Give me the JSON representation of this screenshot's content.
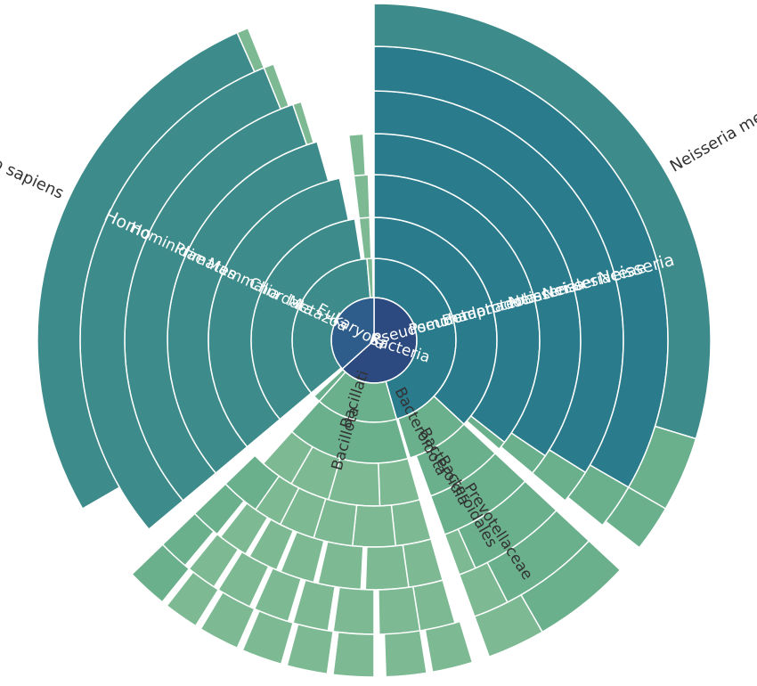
{
  "chart_data": {
    "type": "sunburst",
    "unit": "degrees",
    "colors": {
      "root_bacteria": "#2c4a80",
      "root_eukaryota": "#2e5d8c",
      "deep_teal": "#2a7b8c",
      "teal": "#3d8b8a",
      "green": "#6ab08c",
      "light_green": "#7dba93",
      "text_light": "#ffffff",
      "text_dark": "#333333"
    },
    "labels": {
      "bacteria": "Bacteria",
      "eukaryota": "Eukaryota",
      "pseudomonadati": "Pseudomonadati",
      "pseudomonadota": "Pseudomonadota",
      "betaproteobacteria": "Betaproteobacteria",
      "neisseriales": "Neisseriales",
      "neisseriaceae": "Neisseriaceae",
      "neisseria": "Neisseria",
      "neisseria_meningitidis": "Neisseria meningitidis",
      "bacteroidota": "Bacteroidota",
      "bacteroidia": "Bacteroidia",
      "bacteroidales": "Bacteroidales",
      "prevotellaceae": "Prevotellaceae",
      "bacillati": "Bacillati",
      "bacillota": "Bacillota",
      "metazoa": "Metazoa",
      "chordata": "Chordata",
      "mammalia": "Mammalia",
      "primates": "Primates",
      "hominidae": "Hominidae",
      "homo": "Homo",
      "homo_sapiens": "Homo sapiens"
    },
    "segments": [
      {
        "depth": 0,
        "start": 0,
        "end": 228,
        "color": "root_bacteria",
        "label": "bacteria",
        "label_angle": 108,
        "label_dark": false
      },
      {
        "depth": 0,
        "start": 228,
        "end": 360,
        "color": "root_eukaryota",
        "label": "eukaryota",
        "label_angle": 300,
        "label_dark": false
      },
      {
        "depth": 1,
        "start": 0,
        "end": 164,
        "color": "deep_teal",
        "label": "pseudomonadati",
        "label_angle": 75,
        "label_dark": false
      },
      {
        "depth": 1,
        "start": 164,
        "end": 222,
        "color": "green",
        "label": "bacillati",
        "label_angle": 198,
        "label_dark": true
      },
      {
        "depth": 1,
        "start": 222,
        "end": 227,
        "color": "green"
      },
      {
        "depth": 1,
        "start": 230,
        "end": 355,
        "color": "teal",
        "label": "metazoa",
        "label_angle": 295,
        "label_dark": false
      },
      {
        "depth": 1,
        "start": 355,
        "end": 359,
        "color": "light_green"
      },
      {
        "depth": 2,
        "start": 0,
        "end": 133,
        "color": "deep_teal",
        "label": "pseudomonadota",
        "label_angle": 75,
        "label_dark": false
      },
      {
        "depth": 2,
        "start": 133,
        "end": 163,
        "color": "green",
        "label": "bacteroidota",
        "label_angle": 153,
        "label_dark": true
      },
      {
        "depth": 2,
        "start": 164,
        "end": 222,
        "color": "green",
        "label": "bacillota",
        "label_angle": 196,
        "label_dark": true
      },
      {
        "depth": 2,
        "start": 230,
        "end": 351,
        "color": "teal",
        "label": "chordata",
        "label_angle": 295,
        "label_dark": false
      },
      {
        "depth": 2,
        "start": 353,
        "end": 358,
        "color": "light_green"
      },
      {
        "depth": 3,
        "start": 0,
        "end": 128,
        "color": "deep_teal",
        "label": "betaproteobacteria",
        "label_angle": 75,
        "label_dark": false
      },
      {
        "depth": 3,
        "start": 128,
        "end": 131,
        "color": "green"
      },
      {
        "depth": 3,
        "start": 133,
        "end": 160,
        "color": "green",
        "label": "bacteroidia",
        "label_angle": 151,
        "label_dark": true
      },
      {
        "depth": 3,
        "start": 164,
        "end": 178,
        "color": "light_green"
      },
      {
        "depth": 3,
        "start": 178,
        "end": 196,
        "color": "light_green"
      },
      {
        "depth": 3,
        "start": 196,
        "end": 210,
        "color": "light_green"
      },
      {
        "depth": 3,
        "start": 210,
        "end": 222,
        "color": "light_green"
      },
      {
        "depth": 3,
        "start": 230,
        "end": 348,
        "color": "teal",
        "label": "mammalia",
        "label_angle": 295,
        "label_dark": false
      },
      {
        "depth": 3,
        "start": 353,
        "end": 358,
        "color": "light_green"
      },
      {
        "depth": 4,
        "start": 0,
        "end": 124,
        "color": "deep_teal",
        "label": "neisseriales",
        "label_angle": 75,
        "label_dark": false
      },
      {
        "depth": 4,
        "start": 124,
        "end": 130,
        "color": "green"
      },
      {
        "depth": 4,
        "start": 133,
        "end": 160,
        "color": "green",
        "label": "bacteroidales",
        "label_angle": 150,
        "label_dark": true
      },
      {
        "depth": 4,
        "start": 164,
        "end": 174,
        "color": "light_green"
      },
      {
        "depth": 4,
        "start": 174,
        "end": 186,
        "color": "light_green"
      },
      {
        "depth": 4,
        "start": 186,
        "end": 197,
        "color": "light_green"
      },
      {
        "depth": 4,
        "start": 197,
        "end": 207,
        "color": "light_green"
      },
      {
        "depth": 4,
        "start": 207,
        "end": 215,
        "color": "light_green"
      },
      {
        "depth": 4,
        "start": 215,
        "end": 226,
        "color": "green"
      },
      {
        "depth": 4,
        "start": 230,
        "end": 344,
        "color": "teal",
        "label": "primates",
        "label_angle": 295,
        "label_dark": false
      },
      {
        "depth": 4,
        "start": 353,
        "end": 357,
        "color": "light_green"
      },
      {
        "depth": 5,
        "start": 0,
        "end": 122,
        "color": "deep_teal",
        "label": "neisseriaceae",
        "label_angle": 75,
        "label_dark": false
      },
      {
        "depth": 5,
        "start": 122,
        "end": 130,
        "color": "green"
      },
      {
        "depth": 5,
        "start": 133,
        "end": 156,
        "color": "green",
        "label": "prevotellaceae",
        "label_angle": 147,
        "label_dark": true
      },
      {
        "depth": 5,
        "start": 156,
        "end": 160,
        "color": "light_green"
      },
      {
        "depth": 5,
        "start": 164,
        "end": 172,
        "color": "light_green"
      },
      {
        "depth": 5,
        "start": 172,
        "end": 182,
        "color": "light_green"
      },
      {
        "depth": 5,
        "start": 183,
        "end": 193,
        "color": "light_green"
      },
      {
        "depth": 5,
        "start": 194,
        "end": 202,
        "color": "light_green"
      },
      {
        "depth": 5,
        "start": 203,
        "end": 210,
        "color": "light_green"
      },
      {
        "depth": 5,
        "start": 211,
        "end": 218,
        "color": "light_green"
      },
      {
        "depth": 5,
        "start": 219,
        "end": 226,
        "color": "green"
      },
      {
        "depth": 5,
        "start": 230,
        "end": 341,
        "color": "teal",
        "label": "hominidae",
        "label_angle": 295,
        "label_dark": false
      },
      {
        "depth": 5,
        "start": 341,
        "end": 343,
        "color": "light_green"
      },
      {
        "depth": 6,
        "start": 0,
        "end": 120,
        "color": "deep_teal",
        "label": "neisseria",
        "label_angle": 75,
        "label_dark": false
      },
      {
        "depth": 6,
        "start": 120,
        "end": 129,
        "color": "green"
      },
      {
        "depth": 6,
        "start": 133,
        "end": 153,
        "color": "green"
      },
      {
        "depth": 6,
        "start": 153,
        "end": 160,
        "color": "light_green"
      },
      {
        "depth": 6,
        "start": 164,
        "end": 171,
        "color": "light_green"
      },
      {
        "depth": 6,
        "start": 171,
        "end": 179,
        "color": "light_green"
      },
      {
        "depth": 6,
        "start": 180,
        "end": 188,
        "color": "light_green"
      },
      {
        "depth": 6,
        "start": 189,
        "end": 196,
        "color": "light_green"
      },
      {
        "depth": 6,
        "start": 197,
        "end": 204,
        "color": "light_green"
      },
      {
        "depth": 6,
        "start": 205,
        "end": 212,
        "color": "light_green"
      },
      {
        "depth": 6,
        "start": 213,
        "end": 219,
        "color": "light_green"
      },
      {
        "depth": 6,
        "start": 220,
        "end": 226,
        "color": "green"
      },
      {
        "depth": 6,
        "start": 230,
        "end": 338,
        "color": "teal",
        "label": "homo",
        "label_angle": 295,
        "label_dark": false
      },
      {
        "depth": 6,
        "start": 338,
        "end": 340,
        "color": "light_green"
      },
      {
        "depth": 7,
        "start": 0,
        "end": 107,
        "color": "teal",
        "label": "neisseria_meningitidis",
        "label_angle": 60,
        "label_dark": true,
        "label_outside": true
      },
      {
        "depth": 7,
        "start": 107,
        "end": 120,
        "color": "green"
      },
      {
        "depth": 7,
        "start": 120,
        "end": 128,
        "color": "green"
      },
      {
        "depth": 7,
        "start": 133,
        "end": 150,
        "color": "green"
      },
      {
        "depth": 7,
        "start": 150,
        "end": 160,
        "color": "light_green"
      },
      {
        "depth": 7,
        "start": 163,
        "end": 170,
        "color": "light_green"
      },
      {
        "depth": 7,
        "start": 171,
        "end": 178,
        "color": "light_green"
      },
      {
        "depth": 7,
        "start": 180,
        "end": 187,
        "color": "light_green"
      },
      {
        "depth": 7,
        "start": 188,
        "end": 195,
        "color": "light_green"
      },
      {
        "depth": 7,
        "start": 196,
        "end": 203,
        "color": "light_green"
      },
      {
        "depth": 7,
        "start": 204,
        "end": 211,
        "color": "light_green"
      },
      {
        "depth": 7,
        "start": 212,
        "end": 218,
        "color": "light_green"
      },
      {
        "depth": 7,
        "start": 219,
        "end": 226,
        "color": "green"
      },
      {
        "depth": 7,
        "start": 240,
        "end": 336,
        "color": "teal",
        "label": "homo_sapiens",
        "label_angle": 295,
        "label_dark": true,
        "label_outside": true
      },
      {
        "depth": 7,
        "start": 336,
        "end": 338,
        "color": "light_green"
      }
    ]
  }
}
